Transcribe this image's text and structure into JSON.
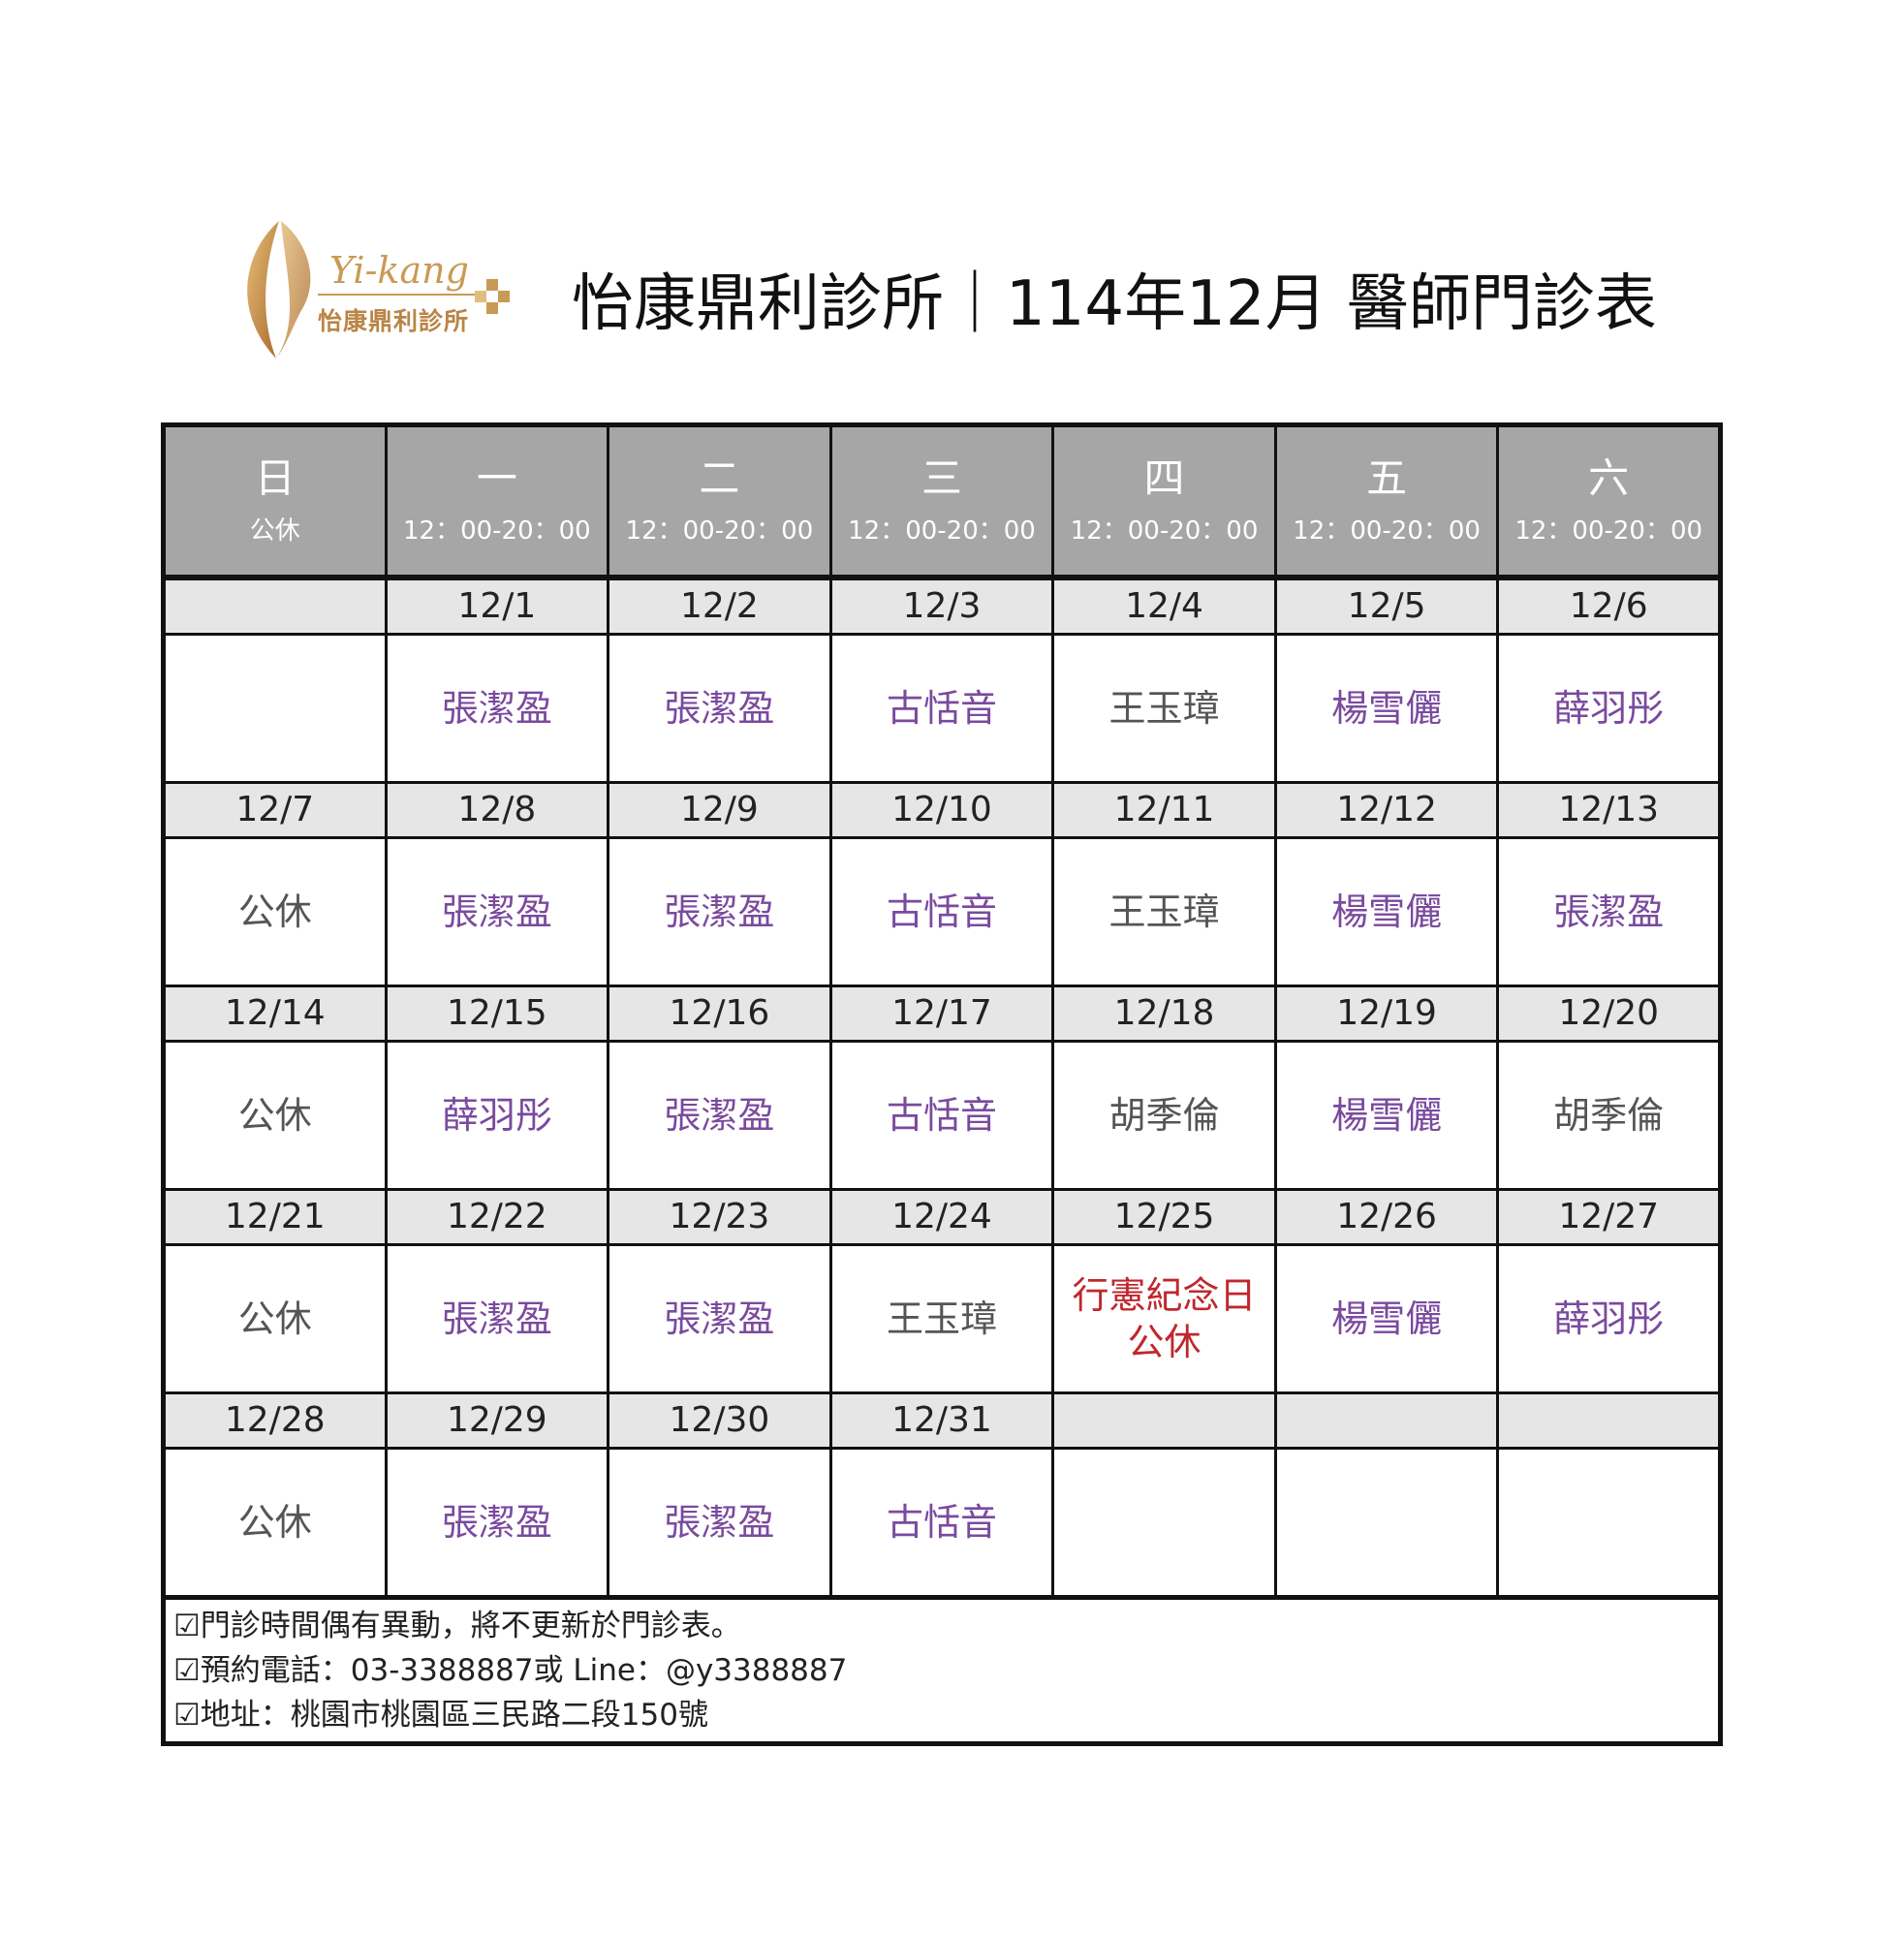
{
  "logo": {
    "en": "Yi-kang",
    "zh": "怡康鼎利診所"
  },
  "title": "怡康鼎利診所｜114年12月 醫師門診表",
  "colors": {
    "purple": "#7a4a9e",
    "gray": "#555555",
    "red": "#c0272d",
    "header_bg": "#a6a6a6",
    "date_bg": "#e7e6e6"
  },
  "header": [
    {
      "day": "日",
      "hours": "公休"
    },
    {
      "day": "一",
      "hours": "12：00-20：00"
    },
    {
      "day": "二",
      "hours": "12：00-20：00"
    },
    {
      "day": "三",
      "hours": "12：00-20：00"
    },
    {
      "day": "四",
      "hours": "12：00-20：00"
    },
    {
      "day": "五",
      "hours": "12：00-20：00"
    },
    {
      "day": "六",
      "hours": "12：00-20：00"
    }
  ],
  "weeks": [
    {
      "dates": [
        "",
        "12/1",
        "12/2",
        "12/3",
        "12/4",
        "12/5",
        "12/6"
      ],
      "cells": [
        {
          "text": "",
          "color": "gray"
        },
        {
          "text": "張潔盈",
          "color": "purple"
        },
        {
          "text": "張潔盈",
          "color": "purple"
        },
        {
          "text": "古恬音",
          "color": "purple"
        },
        {
          "text": "王玉璋",
          "color": "gray"
        },
        {
          "text": "楊雪儷",
          "color": "purple"
        },
        {
          "text": "薛羽彤",
          "color": "purple"
        }
      ]
    },
    {
      "dates": [
        "12/7",
        "12/8",
        "12/9",
        "12/10",
        "12/11",
        "12/12",
        "12/13"
      ],
      "cells": [
        {
          "text": "公休",
          "color": "gray"
        },
        {
          "text": "張潔盈",
          "color": "purple"
        },
        {
          "text": "張潔盈",
          "color": "purple"
        },
        {
          "text": "古恬音",
          "color": "purple"
        },
        {
          "text": "王玉璋",
          "color": "gray"
        },
        {
          "text": "楊雪儷",
          "color": "purple"
        },
        {
          "text": "張潔盈",
          "color": "purple"
        }
      ]
    },
    {
      "dates": [
        "12/14",
        "12/15",
        "12/16",
        "12/17",
        "12/18",
        "12/19",
        "12/20"
      ],
      "cells": [
        {
          "text": "公休",
          "color": "gray"
        },
        {
          "text": "薛羽彤",
          "color": "purple"
        },
        {
          "text": "張潔盈",
          "color": "purple"
        },
        {
          "text": "古恬音",
          "color": "purple"
        },
        {
          "text": "胡季倫",
          "color": "gray"
        },
        {
          "text": "楊雪儷",
          "color": "purple"
        },
        {
          "text": "胡季倫",
          "color": "gray"
        }
      ]
    },
    {
      "dates": [
        "12/21",
        "12/22",
        "12/23",
        "12/24",
        "12/25",
        "12/26",
        "12/27"
      ],
      "cells": [
        {
          "text": "公休",
          "color": "gray"
        },
        {
          "text": "張潔盈",
          "color": "purple"
        },
        {
          "text": "張潔盈",
          "color": "purple"
        },
        {
          "text": "王玉璋",
          "color": "gray"
        },
        {
          "text": "行憲紀念日\n公休",
          "color": "red"
        },
        {
          "text": "楊雪儷",
          "color": "purple"
        },
        {
          "text": "薛羽彤",
          "color": "purple"
        }
      ]
    },
    {
      "dates": [
        "12/28",
        "12/29",
        "12/30",
        "12/31",
        "",
        "",
        ""
      ],
      "cells": [
        {
          "text": "公休",
          "color": "gray"
        },
        {
          "text": "張潔盈",
          "color": "purple"
        },
        {
          "text": "張潔盈",
          "color": "purple"
        },
        {
          "text": "古恬音",
          "color": "purple"
        },
        {
          "text": "",
          "color": "gray"
        },
        {
          "text": "",
          "color": "gray"
        },
        {
          "text": "",
          "color": "gray"
        }
      ]
    }
  ],
  "notes": [
    "☑門診時間偶有異動，將不更新於門診表。",
    "☑預約電話：03-3388887或 Line：@y3388887",
    "☑地址：桃園市桃園區三民路二段150號"
  ]
}
